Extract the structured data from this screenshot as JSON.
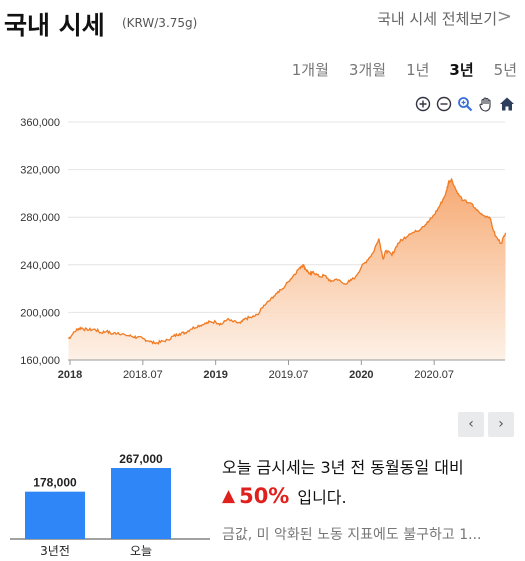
{
  "header": {
    "title": "국내 시세",
    "unit": "(KRW/3.75g)",
    "all_link": "국내 시세 전체보기",
    "chevron": ">"
  },
  "periods": [
    "1개월",
    "3개월",
    "1년",
    "3년",
    "5년"
  ],
  "active_period": "3년",
  "tools": [
    "zoom-in-icon",
    "zoom-out-icon",
    "magnifier-icon",
    "pan-hand-icon",
    "home-icon"
  ],
  "colors": {
    "line": "#f07b24",
    "area_top": "#f6a469",
    "area_bottom": "#fdeee2",
    "bar": "#2f86f6",
    "up_red": "#e0201c"
  },
  "chart_data": [
    {
      "type": "area",
      "x_ticks": [
        "2018",
        "2018.07",
        "2019",
        "2019.07",
        "2020",
        "2020.07"
      ],
      "y_ticks": [
        "360,000",
        "320,000",
        "280,000",
        "240,000",
        "200,000",
        "160,000"
      ],
      "ylim": [
        160000,
        360000
      ],
      "grid": true,
      "series": [
        {
          "x": [
            2017.99,
            2018.02,
            2018.05,
            2018.08,
            2018.12,
            2018.17,
            2018.21,
            2018.25,
            2018.29,
            2018.33,
            2018.38,
            2018.42,
            2018.46,
            2018.5,
            2018.54,
            2018.58,
            2018.62,
            2018.67,
            2018.71,
            2018.75,
            2018.79,
            2018.83,
            2018.88,
            2018.92,
            2018.96,
            2019.0,
            2019.04,
            2019.08,
            2019.12,
            2019.17,
            2019.21,
            2019.25,
            2019.29,
            2019.33,
            2019.38,
            2019.42,
            2019.46,
            2019.5,
            2019.54,
            2019.58,
            2019.6,
            2019.62,
            2019.65,
            2019.67,
            2019.71,
            2019.75,
            2019.79,
            2019.83,
            2019.88,
            2019.92,
            2019.96,
            2020.0,
            2020.04,
            2020.08,
            2020.12,
            2020.15,
            2020.17,
            2020.21,
            2020.25,
            2020.29,
            2020.33,
            2020.38,
            2020.42,
            2020.46,
            2020.5,
            2020.54,
            2020.58,
            2020.6,
            2020.62,
            2020.66,
            2020.7,
            2020.75,
            2020.79,
            2020.83,
            2020.88,
            2020.92,
            2020.96,
            2020.99
          ],
          "y": [
            178000,
            182000,
            186000,
            187000,
            185000,
            186000,
            183000,
            184000,
            182000,
            183000,
            181000,
            180000,
            179000,
            178000,
            176000,
            174000,
            175000,
            177000,
            180000,
            182000,
            183000,
            186000,
            189000,
            190000,
            192000,
            192000,
            190000,
            194000,
            192000,
            191000,
            195000,
            196000,
            198000,
            206000,
            212000,
            216000,
            220000,
            226000,
            232000,
            238000,
            240000,
            236000,
            232000,
            234000,
            230000,
            231000,
            226000,
            228000,
            224000,
            226000,
            230000,
            238000,
            244000,
            250000,
            262000,
            245000,
            252000,
            248000,
            258000,
            262000,
            266000,
            268000,
            272000,
            276000,
            282000,
            290000,
            300000,
            310000,
            312000,
            300000,
            294000,
            292000,
            286000,
            282000,
            280000,
            264000,
            258000,
            267000
          ]
        }
      ]
    },
    {
      "type": "bar",
      "categories": [
        "3년전",
        "오늘"
      ],
      "values": [
        178000,
        267000
      ],
      "data_labels": [
        "178,000",
        "267,000"
      ]
    }
  ],
  "nav": {
    "prev": "‹",
    "next": "›"
  },
  "comparison": {
    "line1": "오늘 금시세는 3년 전 동월동일 대비",
    "arrow": "▲",
    "percent": "50%",
    "suffix": "입니다.",
    "note": "금값, 미 악화된 노동 지표에도 불구하고 1..."
  }
}
